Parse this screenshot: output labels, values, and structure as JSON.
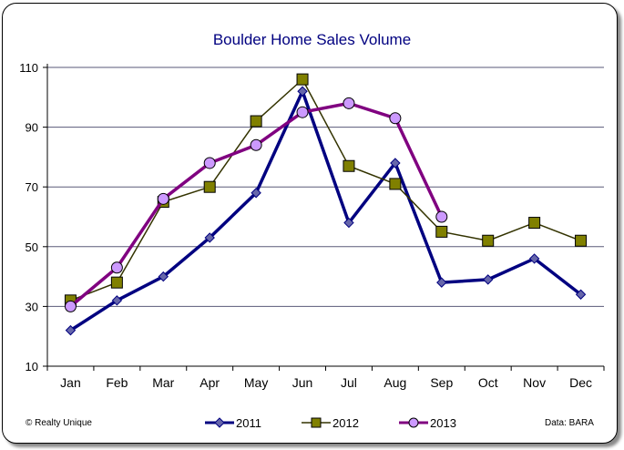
{
  "chart_data": {
    "type": "line",
    "title": "Boulder Home Sales Volume",
    "xlabel": "",
    "ylabel": "",
    "categories": [
      "Jan",
      "Feb",
      "Mar",
      "Apr",
      "May",
      "Jun",
      "Jul",
      "Aug",
      "Sep",
      "Oct",
      "Nov",
      "Dec"
    ],
    "ylim": [
      10,
      110
    ],
    "yticks": [
      "10",
      "30",
      "50",
      "70",
      "90",
      "110"
    ],
    "grid": "horizontal",
    "legend_position": "bottom",
    "series": [
      {
        "name": "2011",
        "color": "#000080",
        "marker": "diamond",
        "values": [
          22,
          32,
          40,
          53,
          68,
          102,
          58,
          78,
          38,
          39,
          46,
          34
        ]
      },
      {
        "name": "2012",
        "color": "#333300",
        "marker_fill": "#808000",
        "marker": "square",
        "values": [
          32,
          38,
          65,
          70,
          92,
          106,
          77,
          71,
          55,
          52,
          58,
          52
        ]
      },
      {
        "name": "2013",
        "color": "#800080",
        "marker_fill": "#cc99ff",
        "marker": "circle",
        "values": [
          30,
          43,
          66,
          78,
          84,
          95,
          98,
          93,
          60,
          null,
          null,
          null
        ]
      }
    ]
  },
  "credits": {
    "left": "© Realty Unique",
    "right": "Data: BARA"
  }
}
